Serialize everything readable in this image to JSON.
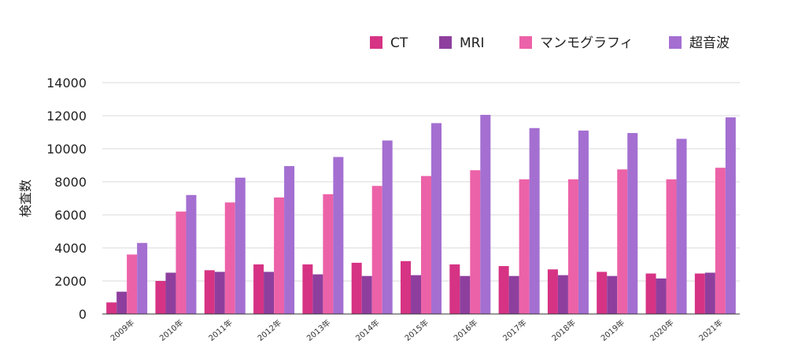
{
  "chart_data": {
    "type": "bar",
    "title": "",
    "xlabel": "",
    "ylabel": "検査数",
    "ylim": [
      0,
      14000
    ],
    "yticks": [
      0,
      2000,
      4000,
      6000,
      8000,
      10000,
      12000,
      14000
    ],
    "grid": true,
    "legend_position": "top-right",
    "categories": [
      "2009年",
      "2010年",
      "2011年",
      "2012年",
      "2013年",
      "2014年",
      "2015年",
      "2016年",
      "2017年",
      "2018年",
      "2019年",
      "2020年",
      "2021年"
    ],
    "series": [
      {
        "name": "CT",
        "color": "#d63384",
        "values": [
          700,
          2000,
          2650,
          3000,
          3000,
          3100,
          3200,
          3000,
          2900,
          2700,
          2550,
          2450,
          2450
        ]
      },
      {
        "name": "MRI",
        "color": "#8e3f9e",
        "values": [
          1350,
          2500,
          2550,
          2550,
          2400,
          2300,
          2350,
          2300,
          2300,
          2350,
          2300,
          2150,
          2500
        ]
      },
      {
        "name": "マンモグラフィ",
        "color": "#ec62a8",
        "values": [
          3600,
          6200,
          6750,
          7050,
          7250,
          7750,
          8350,
          8700,
          8150,
          8150,
          8750,
          8150,
          8850
        ]
      },
      {
        "name": "超音波",
        "color": "#a46fd1",
        "values": [
          4300,
          7200,
          8250,
          8950,
          9500,
          10500,
          11550,
          12050,
          11250,
          11100,
          10950,
          10600,
          11900
        ]
      }
    ]
  }
}
